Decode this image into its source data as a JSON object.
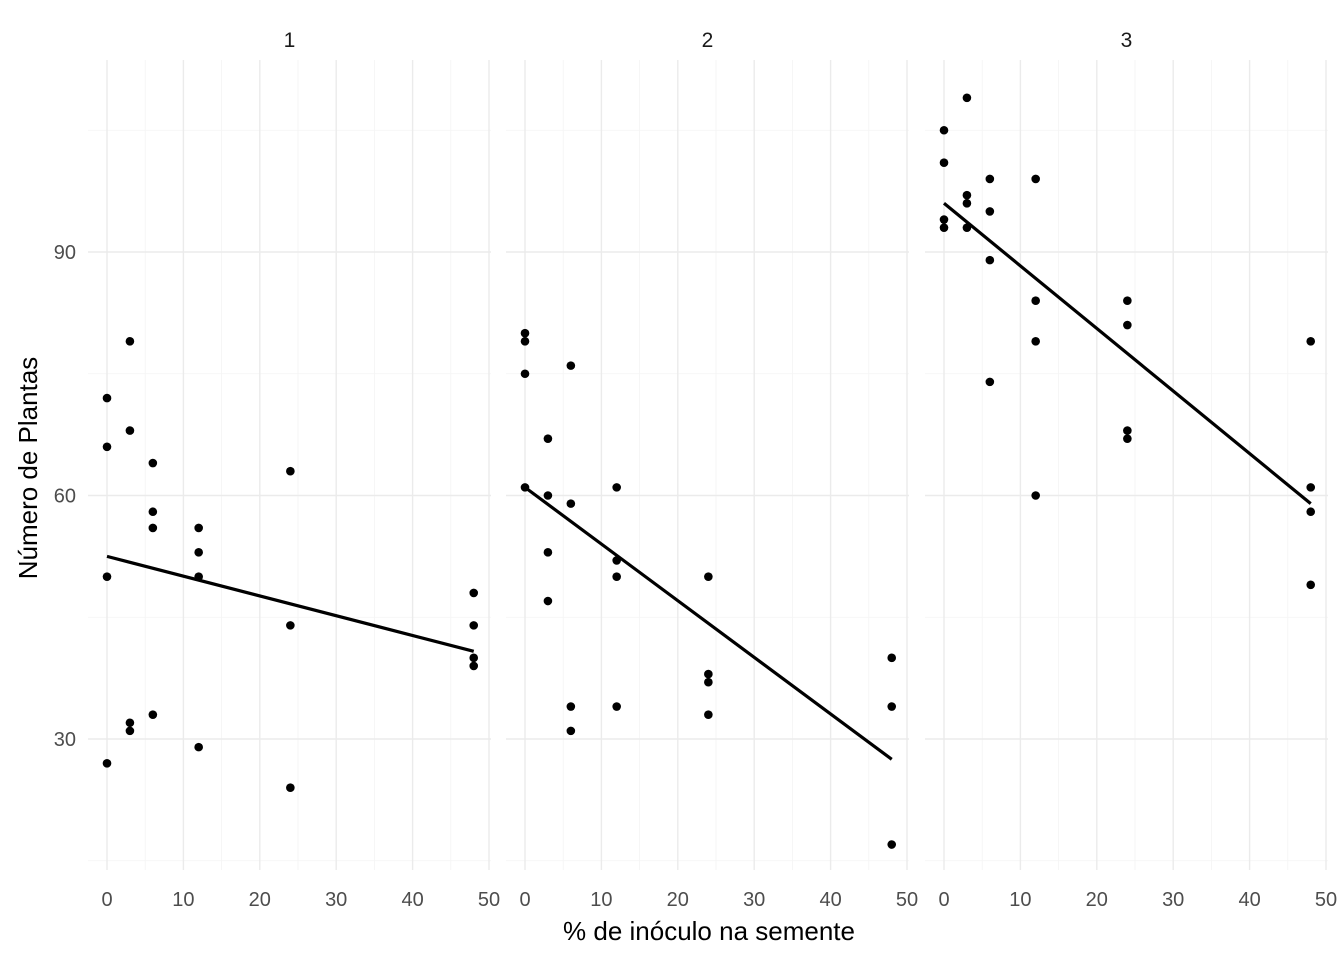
{
  "chart_data": {
    "type": "scatter",
    "xlabel": "% de inóculo na semente",
    "ylabel": "Número de Plantas",
    "xlim": [
      0,
      50
    ],
    "ylim": [
      13,
      111
    ],
    "x_ticks": [
      0,
      10,
      20,
      30,
      40,
      50
    ],
    "y_ticks": [
      30,
      60,
      90
    ],
    "grid": true,
    "trend_line": "linear fit per panel",
    "colors": {
      "points": "#000000",
      "line": "#000000",
      "grid": "#ebebeb"
    },
    "panels": [
      {
        "strip_label": "1",
        "points": [
          [
            0,
            72
          ],
          [
            0,
            66
          ],
          [
            0,
            50
          ],
          [
            0,
            27
          ],
          [
            3,
            79
          ],
          [
            3,
            68
          ],
          [
            3,
            32
          ],
          [
            3,
            31
          ],
          [
            6,
            64
          ],
          [
            6,
            58
          ],
          [
            6,
            56
          ],
          [
            6,
            33
          ],
          [
            12,
            56
          ],
          [
            12,
            53
          ],
          [
            12,
            50
          ],
          [
            12,
            29
          ],
          [
            24,
            63
          ],
          [
            24,
            44
          ],
          [
            24,
            24
          ],
          [
            48,
            48
          ],
          [
            48,
            44
          ],
          [
            48,
            40
          ],
          [
            48,
            39
          ]
        ],
        "fit": [
          [
            0,
            52.5
          ],
          [
            48,
            40.8
          ]
        ]
      },
      {
        "strip_label": "2",
        "points": [
          [
            0,
            80
          ],
          [
            0,
            79
          ],
          [
            0,
            75
          ],
          [
            0,
            61
          ],
          [
            3,
            67
          ],
          [
            3,
            60
          ],
          [
            3,
            53
          ],
          [
            3,
            47
          ],
          [
            6,
            76
          ],
          [
            6,
            59
          ],
          [
            6,
            34
          ],
          [
            6,
            31
          ],
          [
            12,
            61
          ],
          [
            12,
            52
          ],
          [
            12,
            50
          ],
          [
            12,
            34
          ],
          [
            24,
            50
          ],
          [
            24,
            38
          ],
          [
            24,
            37
          ],
          [
            24,
            33
          ],
          [
            48,
            40
          ],
          [
            48,
            34
          ],
          [
            48,
            17
          ]
        ],
        "fit": [
          [
            0,
            61
          ],
          [
            48,
            27.5
          ]
        ]
      },
      {
        "strip_label": "3",
        "points": [
          [
            0,
            105
          ],
          [
            0,
            101
          ],
          [
            0,
            94
          ],
          [
            0,
            93
          ],
          [
            3,
            109
          ],
          [
            3,
            97
          ],
          [
            3,
            96
          ],
          [
            3,
            93
          ],
          [
            6,
            99
          ],
          [
            6,
            95
          ],
          [
            6,
            89
          ],
          [
            6,
            74
          ],
          [
            12,
            99
          ],
          [
            12,
            84
          ],
          [
            12,
            79
          ],
          [
            12,
            60
          ],
          [
            24,
            84
          ],
          [
            24,
            81
          ],
          [
            24,
            68
          ],
          [
            24,
            67
          ],
          [
            48,
            79
          ],
          [
            48,
            61
          ],
          [
            48,
            58
          ],
          [
            48,
            49
          ]
        ],
        "fit": [
          [
            0,
            96
          ],
          [
            48,
            59
          ]
        ]
      }
    ]
  }
}
